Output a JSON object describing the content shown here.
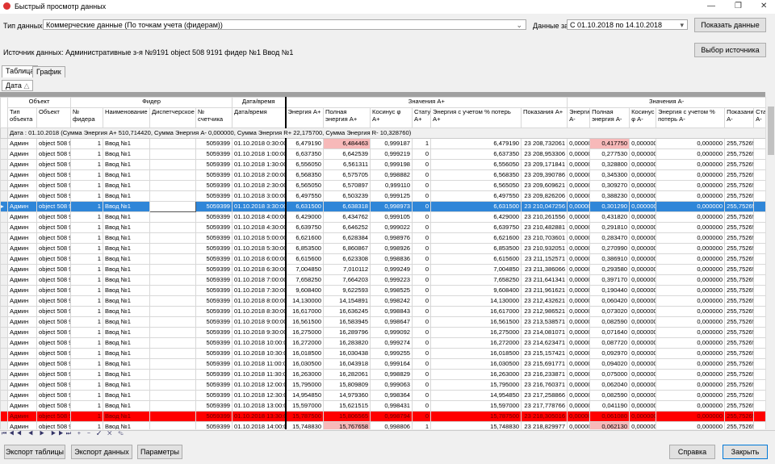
{
  "window": {
    "title": "Быстрый просмотр данных"
  },
  "filters": {
    "data_type_label": "Тип данных:",
    "data_type": "Коммерческие данные (По точкам учета (фидерам))",
    "period_label": "Данные за:",
    "period": "С 01.10.2018 по 14.10.2018",
    "show_button": "Показать данные",
    "source": "Источник данных: Административные з-я №9191 object 508 9191 фидер №1 Ввод №1",
    "source_button": "Выбор источника"
  },
  "tabs": [
    "Таблица",
    "График"
  ],
  "group_panel": {
    "chip": "Дата"
  },
  "table": {
    "groups": [
      "Объект",
      "Фидер",
      "Дата/время",
      "Значения A+",
      "Значения A-"
    ],
    "columns": [
      "Тип объекта",
      "Объект",
      "№ фидера",
      "Наименование",
      "Диспетчерское",
      "№ счетчика",
      "Дата/время",
      "Энергия A+",
      "Полная энергия A+",
      "Косинус φ A+",
      "Статус A+",
      "Энергия с учетом % потерь A+",
      "Показания A+",
      "Энергия A-",
      "Полная энергия A-",
      "Косинус φ A-",
      "Энергия с учетом % потерь A-",
      "Показания A-",
      "Статус A-"
    ],
    "group_row": "Дата : 01.10.2018 (Сумма Энергия A+ 510,714420, Сумма Энергия A- 0,000000, Сумма Энергия R+ 22,175700, Сумма Энергия R- 10,328760)",
    "rows": [
      [
        "Админ",
        "object 508 9",
        "1",
        "Ввод №1",
        null,
        "5059399",
        "01.10.2018 0:30:00",
        "6,479190",
        "6,484463",
        "0,999187",
        "1",
        "6,479190",
        "23 208,732061",
        "0,00000",
        "0,417750",
        "0,000000",
        "0,000000",
        "255,75265",
        null
      ],
      [
        "Админ",
        "object 508 9",
        "1",
        "Ввод №1",
        null,
        "5059399",
        "01.10.2018 1:00:00",
        "6,637350",
        "6,642539",
        "0,999219",
        "0",
        "6,637350",
        "23 208,953306",
        "0,00000",
        "0,277530",
        "0,000000",
        "0,000000",
        "255,75265",
        null
      ],
      [
        "Админ",
        "object 508 9",
        "1",
        "Ввод №1",
        null,
        "5059399",
        "01.10.2018 1:30:00",
        "6,556050",
        "6,561311",
        "0,999198",
        "0",
        "6,556050",
        "23 209,171841",
        "0,00000",
        "0,328800",
        "0,000000",
        "0,000000",
        "255,75265",
        null
      ],
      [
        "Админ",
        "object 508 9",
        "1",
        "Ввод №1",
        null,
        "5059399",
        "01.10.2018 2:00:00",
        "6,568350",
        "6,575705",
        "0,998882",
        "0",
        "6,568350",
        "23 209,390786",
        "0,00000",
        "0,345300",
        "0,000000",
        "0,000000",
        "255,75265",
        null
      ],
      [
        "Админ",
        "object 508 9",
        "1",
        "Ввод №1",
        null,
        "5059399",
        "01.10.2018 2:30:00",
        "6,565050",
        "6,570897",
        "0,999110",
        "0",
        "6,565050",
        "23 209,609621",
        "0,00000",
        "0,309270",
        "0,000000",
        "0,000000",
        "255,75265",
        null
      ],
      [
        "Админ",
        "object 508 9",
        "1",
        "Ввод №1",
        null,
        "5059399",
        "01.10.2018 3:00:00",
        "6,497550",
        "6,503239",
        "0,999125",
        "0",
        "6,497550",
        "23 209,826206",
        "0,00000",
        "0,388230",
        "0,000000",
        "0,000000",
        "255,75265",
        null
      ],
      [
        "Админ",
        "object 508 9",
        "1",
        "Ввод №1",
        null,
        "5059399",
        "01.10.2018 3:30:00",
        "6,631500",
        "6,638318",
        "0,998973",
        "0",
        "6,631500",
        "23 210,047256",
        "0,00000",
        "0,301290",
        "0,000000",
        "0,000000",
        "255,75265",
        null
      ],
      [
        "Админ",
        "object 508 9",
        "1",
        "Ввод №1",
        null,
        "5059399",
        "01.10.2018 4:00:00",
        "6,429000",
        "6,434762",
        "0,999105",
        "0",
        "6,429000",
        "23 210,261556",
        "0,00000",
        "0,431820",
        "0,000000",
        "0,000000",
        "255,75265",
        null
      ],
      [
        "Админ",
        "object 508 9",
        "1",
        "Ввод №1",
        null,
        "5059399",
        "01.10.2018 4:30:00",
        "6,639750",
        "6,646252",
        "0,999022",
        "0",
        "6,639750",
        "23 210,482881",
        "0,00000",
        "0,291810",
        "0,000000",
        "0,000000",
        "255,75265",
        null
      ],
      [
        "Админ",
        "object 508 9",
        "1",
        "Ввод №1",
        null,
        "5059399",
        "01.10.2018 5:00:00",
        "6,621600",
        "6,628384",
        "0,998976",
        "0",
        "6,621600",
        "23 210,703601",
        "0,00000",
        "0,283470",
        "0,000000",
        "0,000000",
        "255,75265",
        null
      ],
      [
        "Админ",
        "object 508 9",
        "1",
        "Ввод №1",
        null,
        "5059399",
        "01.10.2018 5:30:00",
        "6,853500",
        "6,860867",
        "0,998926",
        "0",
        "6,853500",
        "23 210,932051",
        "0,00000",
        "0,270990",
        "0,000000",
        "0,000000",
        "255,75265",
        null
      ],
      [
        "Админ",
        "object 508 9",
        "1",
        "Ввод №1",
        null,
        "5059399",
        "01.10.2018 6:00:00",
        "6,615600",
        "6,623308",
        "0,998836",
        "0",
        "6,615600",
        "23 211,152571",
        "0,00000",
        "0,386910",
        "0,000000",
        "0,000000",
        "255,75265",
        null
      ],
      [
        "Админ",
        "object 508 9",
        "1",
        "Ввод №1",
        null,
        "5059399",
        "01.10.2018 6:30:00",
        "7,004850",
        "7,010112",
        "0,999249",
        "0",
        "7,004850",
        "23 211,386066",
        "0,00000",
        "0,293580",
        "0,000000",
        "0,000000",
        "255,75265",
        null
      ],
      [
        "Админ",
        "object 508 9",
        "1",
        "Ввод №1",
        null,
        "5059399",
        "01.10.2018 7:00:00",
        "7,658250",
        "7,664203",
        "0,999223",
        "0",
        "7,658250",
        "23 211,641341",
        "0,00000",
        "0,397170",
        "0,000000",
        "0,000000",
        "255,75265",
        null
      ],
      [
        "Админ",
        "object 508 9",
        "1",
        "Ввод №1",
        null,
        "5059399",
        "01.10.2018 7:30:00",
        "9,608400",
        "9,622593",
        "0,998525",
        "0",
        "9,608400",
        "23 211,961621",
        "0,00000",
        "0,190440",
        "0,000000",
        "0,000000",
        "255,75265",
        null
      ],
      [
        "Админ",
        "object 508 9",
        "1",
        "Ввод №1",
        null,
        "5059399",
        "01.10.2018 8:00:00",
        "14,130000",
        "14,154891",
        "0,998242",
        "0",
        "14,130000",
        "23 212,432621",
        "0,00000",
        "0,060420",
        "0,000000",
        "0,000000",
        "255,75265",
        null
      ],
      [
        "Админ",
        "object 508 9",
        "1",
        "Ввод №1",
        null,
        "5059399",
        "01.10.2018 8:30:00",
        "16,617000",
        "16,636245",
        "0,998843",
        "0",
        "16,617000",
        "23 212,986521",
        "0,00000",
        "0,073020",
        "0,000000",
        "0,000000",
        "255,75265",
        null
      ],
      [
        "Админ",
        "object 508 9",
        "1",
        "Ввод №1",
        null,
        "5059399",
        "01.10.2018 9:00:00",
        "16,561500",
        "16,583945",
        "0,998647",
        "0",
        "16,561500",
        "23 213,538571",
        "0,00000",
        "0,082590",
        "0,000000",
        "0,000000",
        "255,75265",
        null
      ],
      [
        "Админ",
        "object 508 9",
        "1",
        "Ввод №1",
        null,
        "5059399",
        "01.10.2018 9:30:00",
        "16,275000",
        "16,289796",
        "0,999092",
        "0",
        "16,275000",
        "23 214,081071",
        "0,00000",
        "0,071640",
        "0,000000",
        "0,000000",
        "255,75265",
        null
      ],
      [
        "Админ",
        "object 508 9",
        "1",
        "Ввод №1",
        null,
        "5059399",
        "01.10.2018 10:00:00",
        "16,272000",
        "16,283820",
        "0,999274",
        "0",
        "16,272000",
        "23 214,623471",
        "0,00000",
        "0,087720",
        "0,000000",
        "0,000000",
        "255,75265",
        null
      ],
      [
        "Админ",
        "object 508 9",
        "1",
        "Ввод №1",
        null,
        "5059399",
        "01.10.2018 10:30:00",
        "16,018500",
        "16,030438",
        "0,999255",
        "0",
        "16,018500",
        "23 215,157421",
        "0,00000",
        "0,092970",
        "0,000000",
        "0,000000",
        "255,75265",
        null
      ],
      [
        "Админ",
        "object 508 9",
        "1",
        "Ввод №1",
        null,
        "5059399",
        "01.10.2018 11:00:00",
        "16,030500",
        "16,043918",
        "0,999164",
        "0",
        "16,030500",
        "23 215,691771",
        "0,00000",
        "0,094020",
        "0,000000",
        "0,000000",
        "255,75265",
        null
      ],
      [
        "Админ",
        "object 508 9",
        "1",
        "Ввод №1",
        null,
        "5059399",
        "01.10.2018 11:30:00",
        "16,263000",
        "16,282061",
        "0,998829",
        "0",
        "16,263000",
        "23 216,233871",
        "0,00000",
        "0,075000",
        "0,000000",
        "0,000000",
        "255,75265",
        null
      ],
      [
        "Админ",
        "object 508 9",
        "1",
        "Ввод №1",
        null,
        "5059399",
        "01.10.2018 12:00:00",
        "15,795000",
        "15,809809",
        "0,999063",
        "0",
        "15,795000",
        "23 216,760371",
        "0,00000",
        "0,062040",
        "0,000000",
        "0,000000",
        "255,75265",
        null
      ],
      [
        "Админ",
        "object 508 9",
        "1",
        "Ввод №1",
        null,
        "5059399",
        "01.10.2018 12:30:00",
        "14,954850",
        "14,979360",
        "0,998364",
        "0",
        "14,954850",
        "23 217,258866",
        "0,00000",
        "0,082590",
        "0,000000",
        "0,000000",
        "255,75265",
        null
      ],
      [
        "Админ",
        "object 508 9",
        "1",
        "Ввод №1",
        null,
        "5059399",
        "01.10.2018 13:00:00",
        "15,597000",
        "15,621515",
        "0,998431",
        "0",
        "15,597000",
        "23 217,778766",
        "0,00000",
        "0,041190",
        "0,000000",
        "0,000000",
        "255,75265",
        null
      ],
      [
        "Админ",
        "object 508 9",
        "1",
        "Ввод №1",
        null,
        "5059399",
        "01.10.2018 13:30:00",
        "15,787500",
        "15,806565",
        "0,998794",
        "0",
        "15,787500",
        "23 218,305016",
        "0,00000",
        "0,061080",
        "0,000000",
        "0,000000",
        "255,75265",
        null
      ],
      [
        "Админ",
        "object 508 9",
        "1",
        "Ввод №1",
        null,
        "5059399",
        "01.10.2018 14:00:00",
        "15,748830",
        "15,767658",
        "0,998806",
        "1",
        "15,748830",
        "23 218,829977",
        "0,00000",
        "0,062130",
        "0,000000",
        "0,000000",
        "255,75265",
        null
      ]
    ]
  },
  "buttons": {
    "export_table": "Экспорт таблицы",
    "export_data": "Экспорт данных",
    "params": "Параметры",
    "help": "Справка",
    "close": "Закрыть"
  }
}
